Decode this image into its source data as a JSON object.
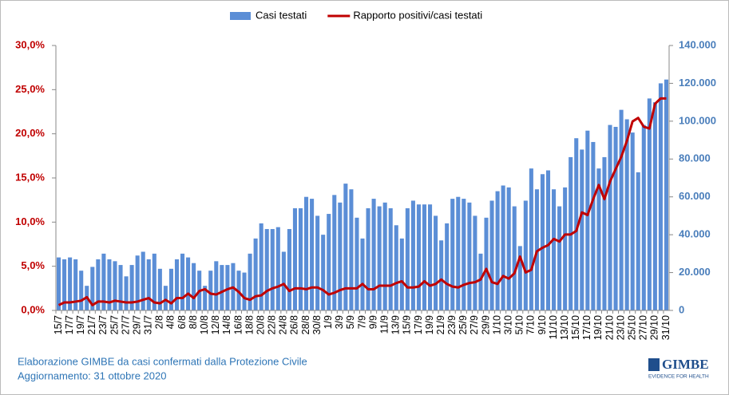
{
  "chart_data": {
    "type": "bar",
    "categories": [
      "15/7",
      null,
      "17/7",
      null,
      "19/7",
      null,
      "21/7",
      null,
      "23/7",
      null,
      "25/7",
      null,
      "27/7",
      null,
      "29/7",
      null,
      "31/7",
      null,
      "2/8",
      null,
      "4/8",
      null,
      "6/8",
      null,
      "8/8",
      null,
      "10/8",
      null,
      "12/8",
      null,
      "14/8",
      null,
      "16/8",
      null,
      "18/8",
      null,
      "20/8",
      null,
      "22/8",
      null,
      "24/8",
      null,
      "26/8",
      null,
      "28/8",
      null,
      "30/8",
      null,
      "1/9",
      null,
      "3/9",
      null,
      "5/9",
      null,
      "7/9",
      null,
      "9/9",
      null,
      "11/9",
      null,
      "13/9",
      null,
      "15/9",
      null,
      "17/9",
      null,
      "19/9",
      null,
      "21/9",
      null,
      "23/9",
      null,
      "25/9",
      null,
      "27/9",
      null,
      "29/9",
      null,
      "1/10",
      null,
      "3/10",
      null,
      "5/10",
      null,
      "7/10",
      null,
      "9/10",
      null,
      "11/10",
      null,
      "13/10",
      null,
      "15/10",
      null,
      "17/10",
      null,
      "19/10",
      null,
      "21/10",
      null,
      "23/10",
      null,
      "25/10",
      null,
      "27/10",
      null,
      "29/10",
      null,
      "31/10"
    ],
    "series": [
      {
        "name": "Casi testati",
        "type": "bar",
        "axis": "y2",
        "color": "#5b8ed6",
        "values": [
          28000,
          27000,
          28000,
          27000,
          21000,
          13000,
          23000,
          27000,
          30000,
          27000,
          26000,
          24000,
          18000,
          24000,
          29000,
          31000,
          27000,
          30000,
          22000,
          13000,
          22000,
          27000,
          30000,
          28000,
          25000,
          21000,
          13000,
          21000,
          26000,
          24000,
          24000,
          25000,
          21000,
          20000,
          30000,
          38000,
          46000,
          43000,
          43000,
          44000,
          31000,
          43000,
          54000,
          54000,
          60000,
          59000,
          50000,
          40000,
          51000,
          61000,
          57000,
          67000,
          64000,
          49000,
          38000,
          54000,
          59000,
          55000,
          57000,
          54000,
          45000,
          38000,
          54000,
          58000,
          56000,
          56000,
          56000,
          50000,
          37000,
          46000,
          59000,
          60000,
          59000,
          57000,
          50000,
          30000,
          49000,
          58000,
          63000,
          66000,
          65000,
          55000,
          34000,
          58000,
          75000,
          64000,
          72000,
          74000,
          64000,
          55000,
          65000,
          81000,
          91000,
          85000,
          95000,
          89000,
          75000,
          81000,
          98000,
          97000,
          106000,
          101000,
          94000,
          73000,
          98000,
          112000,
          110000,
          120000,
          122000
        ]
      },
      {
        "name": "Rapporto positivi/casi testati",
        "type": "line",
        "axis": "y",
        "color": "#c00000",
        "values": [
          0.6,
          0.9,
          0.9,
          1.0,
          1.1,
          1.5,
          0.6,
          1.0,
          1.0,
          0.9,
          1.1,
          1.0,
          0.9,
          0.9,
          1.0,
          1.2,
          1.4,
          0.9,
          0.8,
          1.2,
          0.8,
          1.4,
          1.4,
          1.9,
          1.4,
          2.2,
          2.4,
          1.9,
          1.8,
          2.1,
          2.4,
          2.6,
          2.1,
          1.4,
          1.2,
          1.6,
          1.7,
          2.2,
          2.5,
          2.7,
          3.0,
          2.2,
          2.5,
          2.5,
          2.4,
          2.6,
          2.6,
          2.3,
          1.8,
          2.0,
          2.3,
          2.5,
          2.5,
          2.5,
          3.0,
          2.4,
          2.4,
          2.8,
          2.8,
          2.8,
          3.1,
          3.3,
          2.6,
          2.6,
          2.7,
          3.3,
          2.8,
          3.0,
          3.5,
          3.0,
          2.7,
          2.6,
          2.9,
          3.1,
          3.2,
          3.5,
          4.7,
          3.2,
          3.0,
          3.9,
          3.6,
          4.2,
          6.1,
          4.3,
          4.6,
          6.7,
          7.1,
          7.4,
          8.1,
          7.8,
          8.6,
          8.6,
          9.0,
          11.1,
          10.8,
          12.6,
          14.2,
          12.6,
          14.6,
          16.0,
          17.4,
          19.2,
          21.4,
          21.8,
          20.8,
          20.6,
          23.4,
          24.0,
          24.0
        ]
      }
    ],
    "ylim": [
      0,
      30
    ],
    "yticks": [
      {
        "value": 0,
        "label": "0,0%"
      },
      {
        "value": 5,
        "label": "5,0%"
      },
      {
        "value": 10,
        "label": "10,0%"
      },
      {
        "value": 15,
        "label": "15,0%"
      },
      {
        "value": 20,
        "label": "20,0%"
      },
      {
        "value": 25,
        "label": "25,0%"
      },
      {
        "value": 30,
        "label": "30,0%"
      }
    ],
    "y2lim": [
      0,
      140000
    ],
    "y2ticks": [
      0,
      {
        "value": 20000,
        "label": "20.000"
      },
      {
        "value": 40000,
        "label": "40.000"
      },
      {
        "value": 60000,
        "label": "60.000"
      },
      {
        "value": 80000,
        "label": "80.000"
      },
      {
        "value": 100000,
        "label": "100.000"
      },
      {
        "value": 120000,
        "label": "120.000"
      },
      {
        "value": 140000,
        "label": "140.000"
      }
    ],
    "grid": false,
    "legend": "top"
  },
  "footer": {
    "source": "Elaborazione GIMBE da casi confermati dalla Protezione Civile",
    "updated": "Aggiornamento: 31 ottobre 2020"
  },
  "logo": {
    "name": "GIMBE",
    "tagline": "EVIDENCE FOR HEALTH"
  }
}
